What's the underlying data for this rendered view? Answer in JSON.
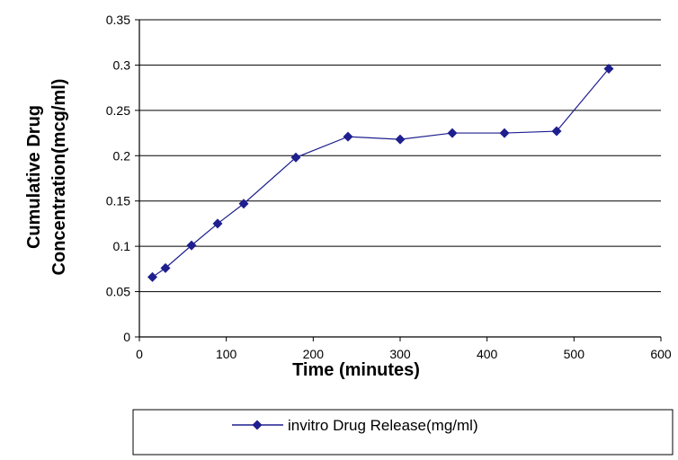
{
  "chart_data": {
    "type": "line",
    "xlabel": "Time (minutes)",
    "ylabel_line1": "Cumulative Drug",
    "ylabel_line2": "Concentration(mcg/ml)",
    "xlim": [
      0,
      600
    ],
    "ylim": [
      0,
      0.35
    ],
    "x_ticks": [
      "0",
      "100",
      "200",
      "300",
      "400",
      "500",
      "600"
    ],
    "y_ticks": [
      "0",
      "0.05",
      "0.1",
      "0.15",
      "0.2",
      "0.25",
      "0.3",
      "0.35"
    ],
    "grid": "horizontal",
    "legend_position": "bottom",
    "series": [
      {
        "name": "invitro Drug Release(mg/ml)",
        "color": "#1f1f8f",
        "marker": "diamond",
        "x": [
          15,
          30,
          60,
          90,
          120,
          180,
          240,
          300,
          360,
          420,
          480,
          540
        ],
        "y": [
          0.066,
          0.076,
          0.101,
          0.125,
          0.147,
          0.198,
          0.221,
          0.218,
          0.225,
          0.225,
          0.227,
          0.296
        ]
      }
    ]
  }
}
